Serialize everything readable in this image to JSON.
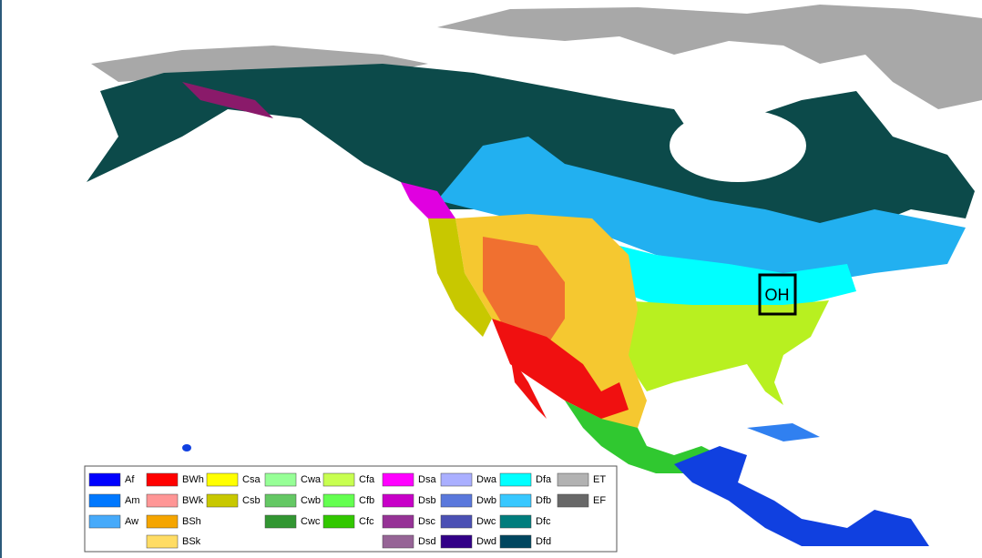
{
  "legend": {
    "columns": [
      [
        {
          "code": "Af",
          "color": "#0000fe"
        },
        {
          "code": "Am",
          "color": "#0078ff"
        },
        {
          "code": "Aw",
          "color": "#46aafa"
        }
      ],
      [
        {
          "code": "BWh",
          "color": "#ff0000"
        },
        {
          "code": "BWk",
          "color": "#ff9696"
        },
        {
          "code": "BSh",
          "color": "#f5a500"
        },
        {
          "code": "BSk",
          "color": "#ffdc64"
        }
      ],
      [
        {
          "code": "Csa",
          "color": "#ffff00"
        },
        {
          "code": "Csb",
          "color": "#c8c800"
        }
      ],
      [
        {
          "code": "Cwa",
          "color": "#96ff96"
        },
        {
          "code": "Cwb",
          "color": "#64c864"
        },
        {
          "code": "Cwc",
          "color": "#329632"
        }
      ],
      [
        {
          "code": "Cfa",
          "color": "#c8ff50"
        },
        {
          "code": "Cfb",
          "color": "#64ff50"
        },
        {
          "code": "Cfc",
          "color": "#32c800"
        }
      ],
      [
        {
          "code": "Dsa",
          "color": "#ff00ff"
        },
        {
          "code": "Dsb",
          "color": "#c800c8"
        },
        {
          "code": "Dsc",
          "color": "#963296"
        },
        {
          "code": "Dsd",
          "color": "#966496"
        }
      ],
      [
        {
          "code": "Dwa",
          "color": "#aaafff"
        },
        {
          "code": "Dwb",
          "color": "#5a78dc"
        },
        {
          "code": "Dwc",
          "color": "#4b50b4"
        },
        {
          "code": "Dwd",
          "color": "#320087"
        }
      ],
      [
        {
          "code": "Dfa",
          "color": "#00ffff"
        },
        {
          "code": "Dfb",
          "color": "#37c8ff"
        },
        {
          "code": "Dfc",
          "color": "#007d7d"
        },
        {
          "code": "Dfd",
          "color": "#00465f"
        }
      ],
      [
        {
          "code": "ET",
          "color": "#b2b2b2"
        },
        {
          "code": "EF",
          "color": "#686868"
        }
      ]
    ]
  },
  "marker": {
    "label": "OH"
  }
}
